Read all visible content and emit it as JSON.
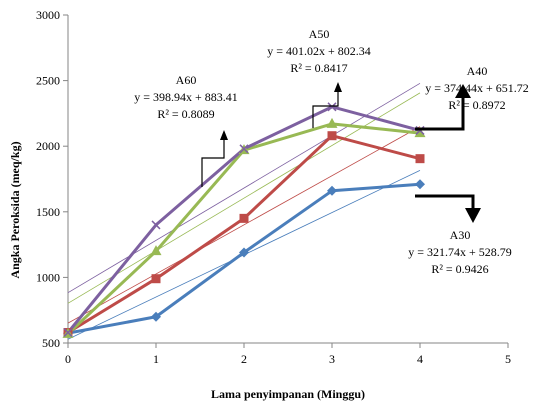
{
  "chart_data": {
    "type": "line",
    "title": "",
    "xlabel": "Lama penyimpanan (Minggu)",
    "ylabel": "Angka Peroksida (meq/kg)",
    "xlim": [
      0,
      5
    ],
    "ylim": [
      500,
      3000
    ],
    "x_ticks": [
      "0",
      "1",
      "2",
      "3",
      "4",
      "5"
    ],
    "y_ticks": [
      "500",
      "1000",
      "1500",
      "2000",
      "2500",
      "3000"
    ],
    "grid": false,
    "legend": "none",
    "x": [
      0,
      1,
      2,
      3,
      4
    ],
    "series": [
      {
        "id": "A30",
        "color": "#4a7ebb",
        "marker": "diamond",
        "values": [
          575,
          700,
          1190,
          1660,
          1710
        ],
        "trend": {
          "slope": 321.74,
          "intercept": 528.79
        },
        "annotation": {
          "name": "A30",
          "equation": "y = 321.74x + 528.79",
          "r2": "R² = 0.9426"
        }
      },
      {
        "id": "A40",
        "color": "#be4b48",
        "marker": "square",
        "values": [
          580,
          990,
          1450,
          2080,
          1905
        ],
        "trend": {
          "slope": 374.44,
          "intercept": 651.72
        },
        "annotation": {
          "name": "A40",
          "equation": "y = 374.44x + 651.72",
          "r2": "R² = 0.8972"
        }
      },
      {
        "id": "A50",
        "color": "#98b954",
        "marker": "triangle",
        "values": [
          570,
          1200,
          1970,
          2170,
          2100
        ],
        "trend": {
          "slope": 401.02,
          "intercept": 802.34
        },
        "annotation": {
          "name": "A50",
          "equation": "y = 401.02x + 802.34",
          "r2": "R² = 0.8417"
        }
      },
      {
        "id": "A60",
        "color": "#7d60a0",
        "marker": "x",
        "values": [
          580,
          1400,
          1980,
          2300,
          2120
        ],
        "trend": {
          "slope": 398.94,
          "intercept": 883.41
        },
        "annotation": {
          "name": "A60",
          "equation": "y = 398.94x + 883.41",
          "r2": "R² = 0.8089"
        }
      }
    ]
  }
}
